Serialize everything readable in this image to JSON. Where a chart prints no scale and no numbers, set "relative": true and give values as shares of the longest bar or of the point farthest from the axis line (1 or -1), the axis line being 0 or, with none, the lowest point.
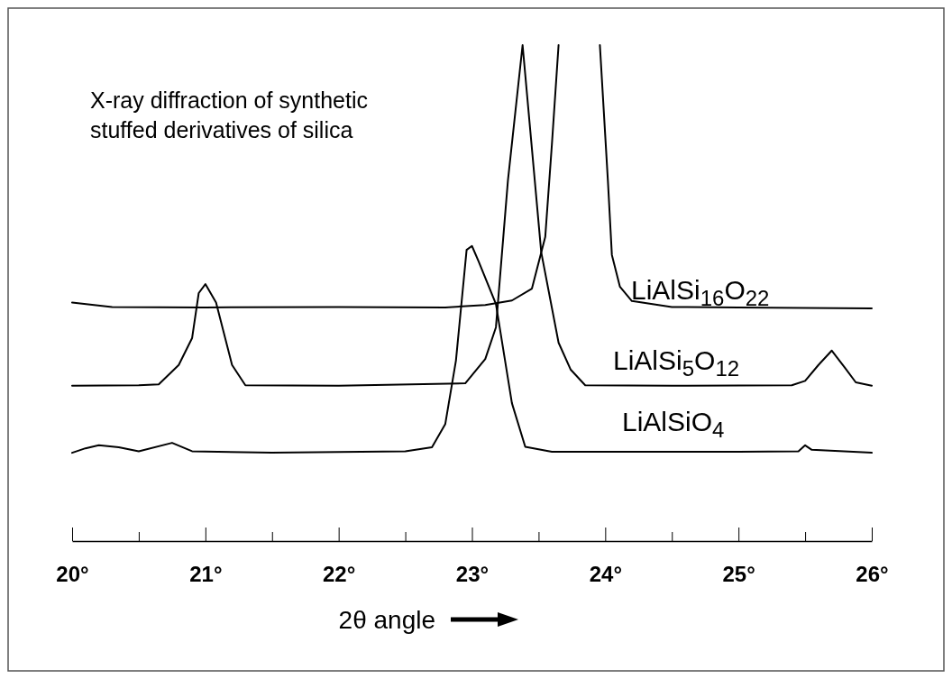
{
  "chart_data": {
    "type": "line",
    "title": "X-ray diffraction of synthetic stuffed derivatives of silica",
    "xlabel": "2θ angle",
    "relative": true,
    "grid": false,
    "legend": false,
    "marker": "none",
    "line_style": "solid",
    "xlim": [
      20,
      26
    ],
    "xticks": [
      {
        "value": 20,
        "label": "20°"
      },
      {
        "value": 20.5,
        "label": null
      },
      {
        "value": 21,
        "label": "21°"
      },
      {
        "value": 21.5,
        "label": null
      },
      {
        "value": 22,
        "label": "22°"
      },
      {
        "value": 22.5,
        "label": null
      },
      {
        "value": 23,
        "label": "23°"
      },
      {
        "value": 23.5,
        "label": null
      },
      {
        "value": 24,
        "label": "24°"
      },
      {
        "value": 24.5,
        "label": null
      },
      {
        "value": 25,
        "label": "25°"
      },
      {
        "value": 25.5,
        "label": null
      },
      {
        "value": 26,
        "label": "26°"
      }
    ],
    "series": [
      {
        "name": "LiAlSi$_{16}$O$_{22}$",
        "color": "#000000",
        "x": [
          20,
          20.3,
          21,
          22,
          22.8,
          23.1,
          23.3,
          23.45,
          23.55,
          23.6,
          23.65,
          23.8,
          23.96,
          24.02,
          24.05,
          24.11,
          24.2,
          24.5,
          25,
          26
        ],
        "values": [
          0.481,
          0.472,
          0.471,
          0.472,
          0.471,
          0.476,
          0.485,
          0.509,
          0.613,
          0.8,
          1,
          null,
          1,
          0.727,
          0.577,
          0.513,
          0.484,
          0.472,
          0.471,
          0.469
        ]
      },
      {
        "name": "LiAlSi$_{5}$O$_{12}$",
        "color": "#000000",
        "x": [
          20,
          20.5,
          20.65,
          20.8,
          20.9,
          20.95,
          21.0,
          21.08,
          21.2,
          21.3,
          22,
          22.95,
          23.1,
          23.18,
          23.27,
          23.38,
          23.52,
          23.65,
          23.74,
          23.85,
          24.5,
          25.4,
          25.5,
          25.6,
          25.7,
          25.8,
          25.88,
          26
        ],
        "values": [
          0.313,
          0.314,
          0.316,
          0.355,
          0.409,
          0.5,
          0.518,
          0.481,
          0.355,
          0.314,
          0.313,
          0.318,
          0.367,
          0.431,
          0.727,
          1,
          0.582,
          0.4,
          0.346,
          0.314,
          0.313,
          0.314,
          0.323,
          0.355,
          0.384,
          0.349,
          0.32,
          0.313
        ]
      },
      {
        "name": "LiAlSiO$_{4}$",
        "color": "#000000",
        "x": [
          20,
          20.1,
          20.2,
          20.35,
          20.5,
          20.75,
          20.9,
          21.5,
          22.5,
          22.7,
          22.8,
          22.88,
          22.96,
          23.0,
          23.05,
          23.18,
          23.3,
          23.4,
          23.6,
          25,
          25.45,
          25.5,
          25.55,
          26
        ],
        "values": [
          0.178,
          0.187,
          0.193,
          0.189,
          0.181,
          0.198,
          0.181,
          0.178,
          0.181,
          0.189,
          0.236,
          0.364,
          0.587,
          0.595,
          0.564,
          0.478,
          0.278,
          0.19,
          0.18,
          0.18,
          0.181,
          0.193,
          0.184,
          0.178
        ]
      }
    ]
  }
}
